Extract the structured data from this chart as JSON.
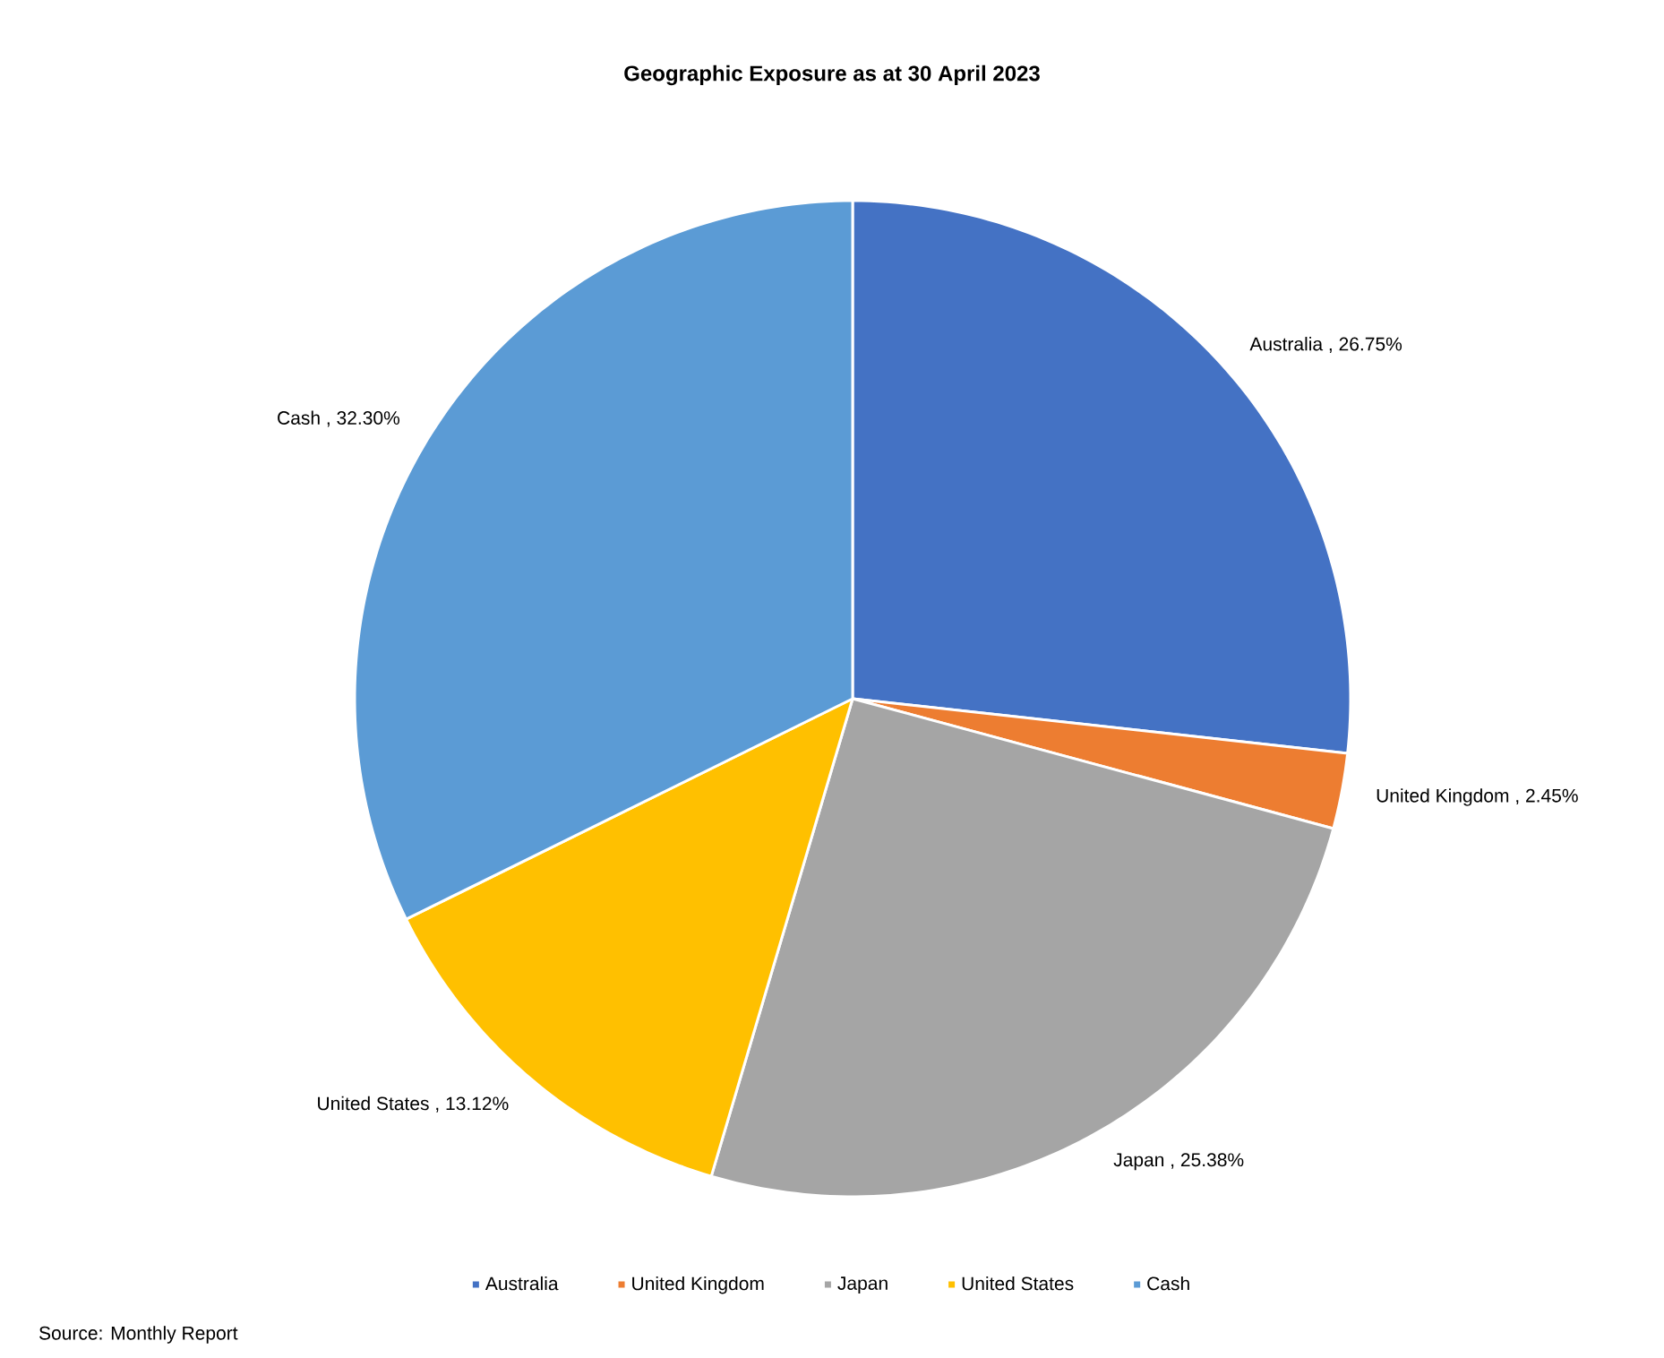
{
  "chart_data": {
    "type": "pie",
    "title": "Geographic Exposure as at 30 April 2023",
    "categories": [
      "Australia",
      "United Kingdom",
      "Japan",
      "United States",
      "Cash"
    ],
    "values": [
      26.75,
      2.45,
      25.38,
      13.12,
      32.3
    ],
    "value_labels": [
      "Australia , 26.75%",
      "United Kingdom , 2.45%",
      "Japan , 25.38%",
      "United States , 13.12%",
      "Cash , 32.30%"
    ],
    "colors": [
      "#4472c4",
      "#ed7d31",
      "#a5a5a5",
      "#ffc000",
      "#5b9bd5"
    ],
    "legend": "bottom",
    "annotations": [
      "Source: Monthly Report"
    ]
  }
}
